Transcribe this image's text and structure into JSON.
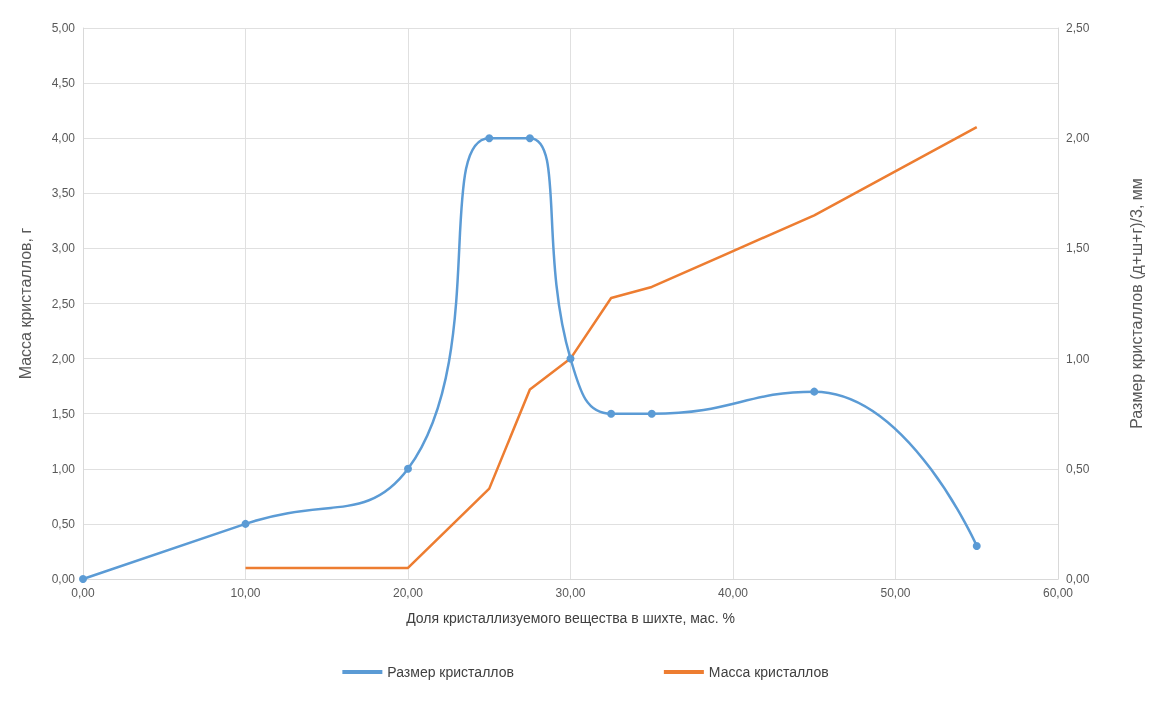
{
  "chart_data": {
    "type": "line",
    "xlabel": "Доля кристаллизуемого вещества в шихте, мас. %",
    "ylabel": "Масса кристаллов, г",
    "y2label": "Размер кристаллов (д+ш+г)/3, мм",
    "xlim": [
      0,
      60
    ],
    "xticks": [
      {
        "value": 0,
        "label": "0,00"
      },
      {
        "value": 10,
        "label": "10,00"
      },
      {
        "value": 20,
        "label": "20,00"
      },
      {
        "value": 30,
        "label": "30,00"
      },
      {
        "value": 40,
        "label": "40,00"
      },
      {
        "value": 50,
        "label": "50,00"
      },
      {
        "value": 60,
        "label": "60,00"
      }
    ],
    "ylim": [
      0,
      5
    ],
    "yticks": [
      {
        "value": 0,
        "label": "0,00"
      },
      {
        "value": 0.5,
        "label": "0,50"
      },
      {
        "value": 1,
        "label": "1,00"
      },
      {
        "value": 1.5,
        "label": "1,50"
      },
      {
        "value": 2,
        "label": "2,00"
      },
      {
        "value": 2.5,
        "label": "2,50"
      },
      {
        "value": 3,
        "label": "3,00"
      },
      {
        "value": 3.5,
        "label": "3,50"
      },
      {
        "value": 4,
        "label": "4,00"
      },
      {
        "value": 4.5,
        "label": "4,50"
      },
      {
        "value": 5,
        "label": "5,00"
      }
    ],
    "y2lim": [
      0,
      2.5
    ],
    "y2ticks": [
      {
        "value": 0,
        "label": "0,00"
      },
      {
        "value": 0.5,
        "label": "0,50"
      },
      {
        "value": 1,
        "label": "1,00"
      },
      {
        "value": 1.5,
        "label": "1,50"
      },
      {
        "value": 2,
        "label": "2,00"
      },
      {
        "value": 2.5,
        "label": "2,50"
      }
    ],
    "grid": true,
    "legend": "bottom",
    "series": [
      {
        "name": "Размер кристаллов",
        "color": "#5b9bd5",
        "axis": "y2",
        "marker": "circle",
        "x": [
          0,
          10,
          20,
          25,
          27.5,
          30,
          32.5,
          35,
          45,
          55
        ],
        "values": [
          0,
          0.25,
          0.5,
          2.0,
          2.0,
          1.0,
          0.75,
          0.75,
          0.85,
          0.15
        ]
      },
      {
        "name": "Масса кристаллов",
        "color": "#ed7d31",
        "axis": "y",
        "marker": "none",
        "x": [
          10,
          20,
          25,
          27.5,
          30,
          32.5,
          35,
          45,
          55
        ],
        "values": [
          0.1,
          0.1,
          0.82,
          1.72,
          2.0,
          2.55,
          2.65,
          3.3,
          4.1
        ]
      }
    ]
  }
}
